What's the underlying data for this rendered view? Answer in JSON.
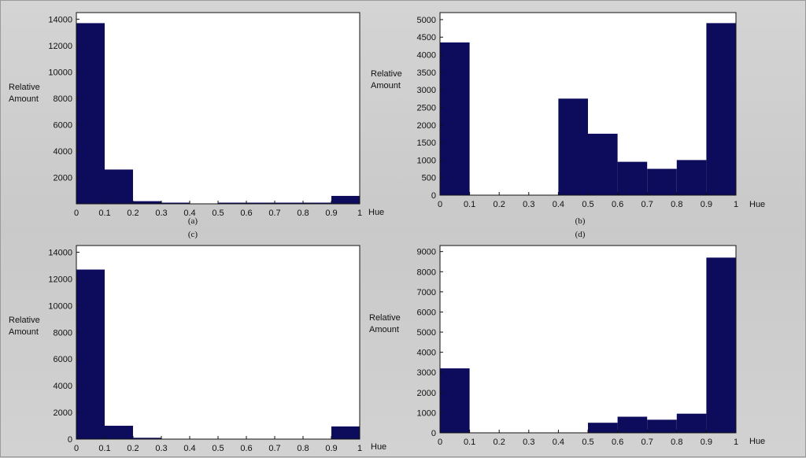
{
  "colors": {
    "bar": "#0d0b5c",
    "plot_bg": "#ffffff",
    "axis": "#111111"
  },
  "captions": [
    "(a)",
    "(c)",
    "(b)",
    "(d)"
  ],
  "chart_data": [
    {
      "type": "bar",
      "bin_edges": [
        0,
        0.1,
        0.2,
        0.3,
        0.4,
        0.5,
        0.6,
        0.7,
        0.8,
        0.9,
        1
      ],
      "values": [
        13700,
        2600,
        200,
        50,
        0,
        30,
        30,
        30,
        30,
        600
      ],
      "xticks": [
        "0",
        "0.1",
        "0.2",
        "0.3",
        "0.4",
        "0.5",
        "0.6",
        "0.7",
        "0.8",
        "0.9",
        "1"
      ],
      "yticks": [
        2000,
        4000,
        6000,
        8000,
        10000,
        12000,
        14000
      ],
      "ylim": [
        0,
        14500
      ],
      "xlabel": "Hue",
      "ylabel": [
        "Relative",
        "Amount"
      ],
      "grid": false
    },
    {
      "type": "bar",
      "bin_edges": [
        0,
        0.1,
        0.2,
        0.3,
        0.4,
        0.5,
        0.6,
        0.7,
        0.8,
        0.9,
        1
      ],
      "values": [
        4350,
        0,
        0,
        0,
        2750,
        1750,
        950,
        750,
        1000,
        4900
      ],
      "xticks": [
        "0",
        "0.1",
        "0.2",
        "0.3",
        "0.4",
        "0.5",
        "0.6",
        "0.7",
        "0.8",
        "0.9",
        "1"
      ],
      "yticks": [
        0,
        500,
        1000,
        1500,
        2000,
        2500,
        3000,
        3500,
        4000,
        4500,
        5000
      ],
      "ylim": [
        0,
        5200
      ],
      "xlabel": "Hue",
      "ylabel": [
        "Relative",
        "Amount"
      ],
      "grid": false
    },
    {
      "type": "bar",
      "bin_edges": [
        0,
        0.1,
        0.2,
        0.3,
        0.4,
        0.5,
        0.6,
        0.7,
        0.8,
        0.9,
        1
      ],
      "values": [
        12700,
        1000,
        100,
        0,
        0,
        0,
        0,
        0,
        0,
        950
      ],
      "xticks": [
        "0",
        "0.1",
        "0.2",
        "0.3",
        "0.4",
        "0.5",
        "0.6",
        "0.7",
        "0.8",
        "0.9",
        "1"
      ],
      "yticks": [
        0,
        2000,
        4000,
        6000,
        8000,
        10000,
        12000,
        14000
      ],
      "ylim": [
        0,
        14500
      ],
      "xlabel": "Hue",
      "ylabel": [
        "Relative",
        "Amount"
      ],
      "grid": false
    },
    {
      "type": "bar",
      "bin_edges": [
        0,
        0.1,
        0.2,
        0.3,
        0.4,
        0.5,
        0.6,
        0.7,
        0.8,
        0.9,
        1
      ],
      "values": [
        3200,
        0,
        0,
        0,
        0,
        500,
        800,
        650,
        950,
        8700
      ],
      "xticks": [
        "0",
        "0.1",
        "0.2",
        "0.3",
        "0.4",
        "0.5",
        "0.6",
        "0.7",
        "0.8",
        "0.9",
        "1"
      ],
      "yticks": [
        0,
        1000,
        2000,
        3000,
        4000,
        5000,
        6000,
        7000,
        8000,
        9000
      ],
      "ylim": [
        0,
        9300
      ],
      "xlabel": "Hue",
      "ylabel": [
        "Relative",
        "Amount"
      ],
      "grid": false
    }
  ]
}
